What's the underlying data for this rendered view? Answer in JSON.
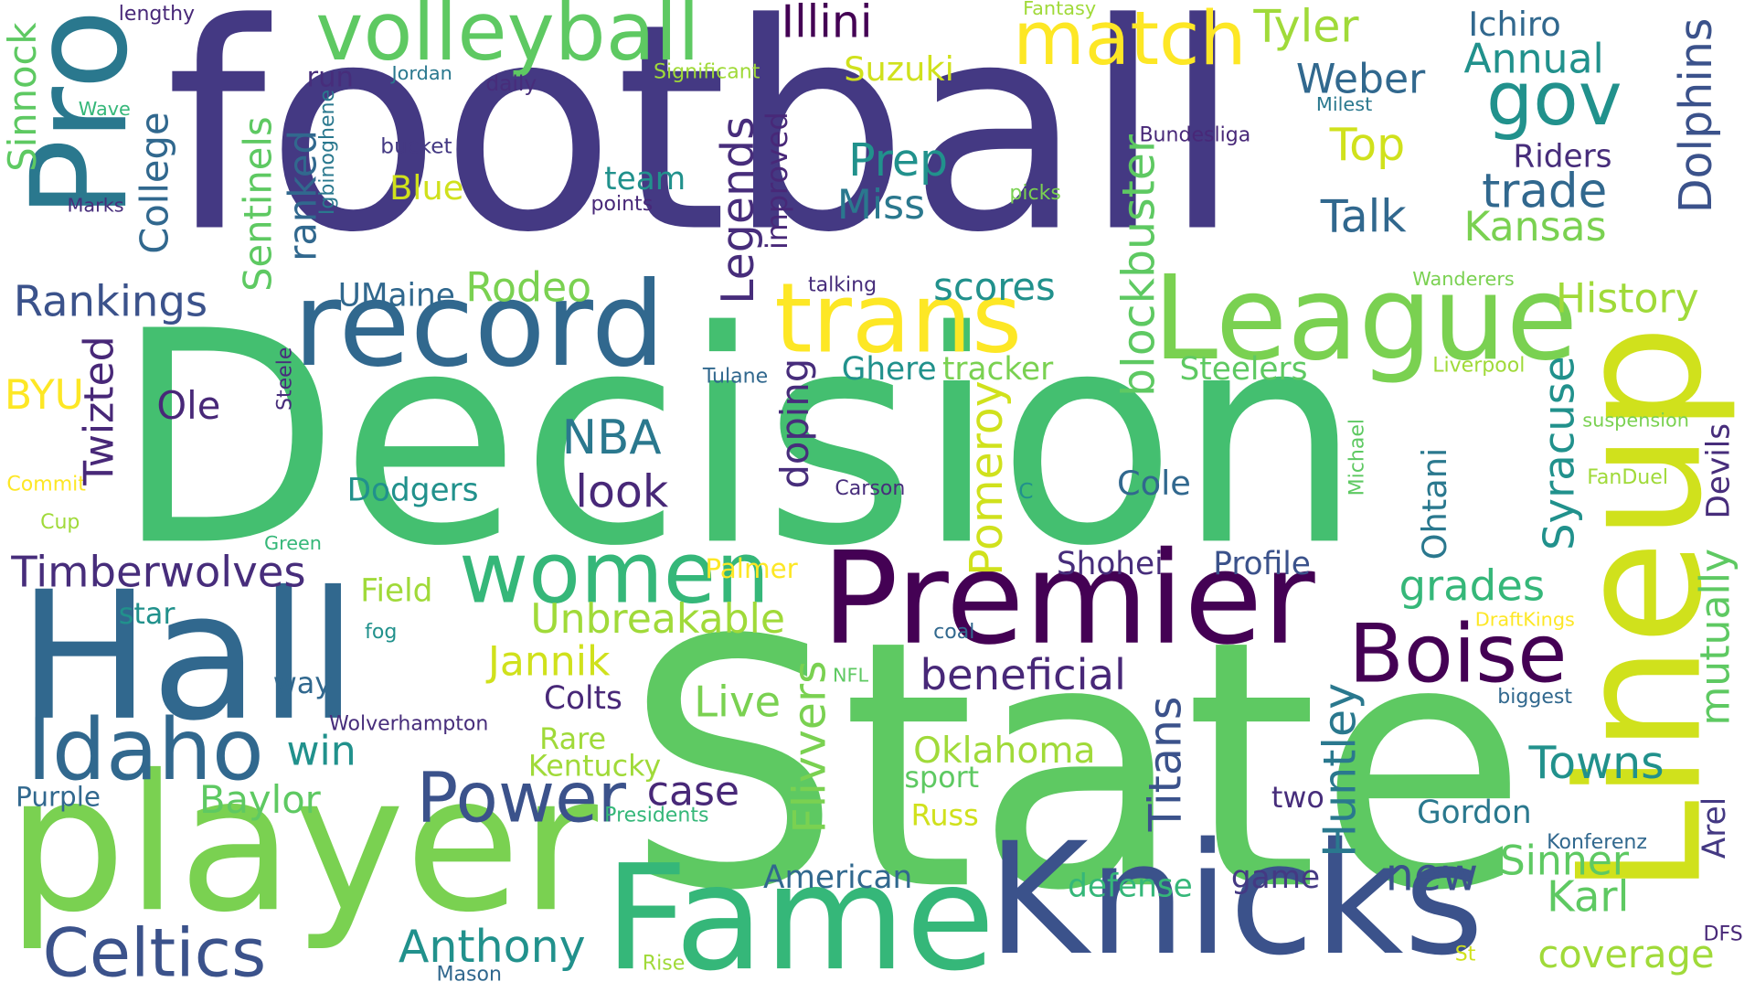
{
  "words": [
    {
      "text": "football",
      "color": "#443983"
    },
    {
      "text": "Decision",
      "color": "#44bf70"
    },
    {
      "text": "State",
      "color": "#5ec962"
    },
    {
      "text": "Lineup",
      "color": "#d0e11c"
    },
    {
      "text": "Pro",
      "color": "#2a788e"
    },
    {
      "text": "player",
      "color": "#7ad151"
    },
    {
      "text": "Hall",
      "color": "#31688e"
    },
    {
      "text": "Knicks",
      "color": "#3b528b"
    },
    {
      "text": "Fame",
      "color": "#35b779"
    },
    {
      "text": "record",
      "color": "#31688e"
    },
    {
      "text": "League",
      "color": "#7ad151"
    },
    {
      "text": "Premier",
      "color": "#440154"
    },
    {
      "text": "trans",
      "color": "#fde725"
    },
    {
      "text": "volleyball",
      "color": "#5ec962"
    },
    {
      "text": "match",
      "color": "#fde725"
    },
    {
      "text": "women",
      "color": "#35b779"
    },
    {
      "text": "Boise",
      "color": "#440154"
    },
    {
      "text": "Idaho",
      "color": "#31688e"
    },
    {
      "text": "Power",
      "color": "#3b528b"
    },
    {
      "text": "Celtics",
      "color": "#3b528b"
    },
    {
      "text": "gov",
      "color": "#21918c"
    },
    {
      "text": "Illini",
      "color": "#440154"
    },
    {
      "text": "Tyler",
      "color": "#a0da39"
    },
    {
      "text": "Ichiro",
      "color": "#31688e"
    },
    {
      "text": "Annual",
      "color": "#21918c"
    },
    {
      "text": "Weber",
      "color": "#31688e"
    },
    {
      "text": "Top",
      "color": "#d0e11c"
    },
    {
      "text": "Riders",
      "color": "#472d7b"
    },
    {
      "text": "trade",
      "color": "#31688e"
    },
    {
      "text": "Kansas",
      "color": "#7ad151"
    },
    {
      "text": "Talk",
      "color": "#31688e"
    },
    {
      "text": "Prep",
      "color": "#21918c"
    },
    {
      "text": "Miss",
      "color": "#2a788e"
    },
    {
      "text": "team",
      "color": "#21918c"
    },
    {
      "text": "points",
      "color": "#482878"
    },
    {
      "text": "Blue",
      "color": "#d0e11c"
    },
    {
      "text": "bucket",
      "color": "#443983"
    },
    {
      "text": "run",
      "color": "#472d7b"
    },
    {
      "text": "Jordan",
      "color": "#2a788e"
    },
    {
      "text": "daily",
      "color": "#472d7b"
    },
    {
      "text": "Significant",
      "color": "#a0da39"
    },
    {
      "text": "Suzuki",
      "color": "#d0e11c"
    },
    {
      "text": "Fantasy",
      "color": "#a0da39"
    },
    {
      "text": "lengthy",
      "color": "#482878"
    },
    {
      "text": "Wave",
      "color": "#35b779"
    },
    {
      "text": "Marks",
      "color": "#472d7b"
    },
    {
      "text": "Milest",
      "color": "#2a788e"
    },
    {
      "text": "Bundesliga",
      "color": "#482878"
    },
    {
      "text": "picks",
      "color": "#7ad151"
    },
    {
      "text": "talking",
      "color": "#472d7b"
    },
    {
      "text": "Wanderers",
      "color": "#7ad151"
    },
    {
      "text": "Rankings",
      "color": "#3b528b"
    },
    {
      "text": "UMaine",
      "color": "#31688e"
    },
    {
      "text": "Rodeo",
      "color": "#7ad151"
    },
    {
      "text": "scores",
      "color": "#21918c"
    },
    {
      "text": "History",
      "color": "#a0da39"
    },
    {
      "text": "Ghere",
      "color": "#21918c"
    },
    {
      "text": "tracker",
      "color": "#7ad151"
    },
    {
      "text": "Steelers",
      "color": "#5ec962"
    },
    {
      "text": "Liverpool",
      "color": "#a0da39"
    },
    {
      "text": "Tulane",
      "color": "#31688e"
    },
    {
      "text": "BYU",
      "color": "#fde725"
    },
    {
      "text": "Ole",
      "color": "#482878"
    },
    {
      "text": "NBA",
      "color": "#2a788e"
    },
    {
      "text": "look",
      "color": "#482878"
    },
    {
      "text": "Carson",
      "color": "#472d7b"
    },
    {
      "text": "C",
      "color": "#21918c"
    },
    {
      "text": "Cole",
      "color": "#31688e"
    },
    {
      "text": "suspension",
      "color": "#7ad151"
    },
    {
      "text": "FanDuel",
      "color": "#a0da39"
    },
    {
      "text": "Commit",
      "color": "#fde725"
    },
    {
      "text": "Dodgers",
      "color": "#21918c"
    },
    {
      "text": "Cup",
      "color": "#a0da39"
    },
    {
      "text": "Green",
      "color": "#35b779"
    },
    {
      "text": "Timberwolves",
      "color": "#472d7b"
    },
    {
      "text": "Field",
      "color": "#a0da39"
    },
    {
      "text": "Palmer",
      "color": "#fde725"
    },
    {
      "text": "Shohei",
      "color": "#472d7b"
    },
    {
      "text": "Profile",
      "color": "#3b528b"
    },
    {
      "text": "grades",
      "color": "#35b779"
    },
    {
      "text": "DraftKings",
      "color": "#fde725"
    },
    {
      "text": "star",
      "color": "#21918c"
    },
    {
      "text": "fog",
      "color": "#21918c"
    },
    {
      "text": "Unbreakable",
      "color": "#a0da39"
    },
    {
      "text": "coal",
      "color": "#31688e"
    },
    {
      "text": "Jannik",
      "color": "#d0e11c"
    },
    {
      "text": "beneficial",
      "color": "#482878"
    },
    {
      "text": "way",
      "color": "#31688e"
    },
    {
      "text": "Colts",
      "color": "#482878"
    },
    {
      "text": "NFL",
      "color": "#5ec962"
    },
    {
      "text": "Live",
      "color": "#7ad151"
    },
    {
      "text": "biggest",
      "color": "#31688e"
    },
    {
      "text": "Wolverhampton",
      "color": "#472d7b"
    },
    {
      "text": "Rare",
      "color": "#a0da39"
    },
    {
      "text": "Oklahoma",
      "color": "#a0da39"
    },
    {
      "text": "win",
      "color": "#21918c"
    },
    {
      "text": "Kentucky",
      "color": "#a0da39"
    },
    {
      "text": "Towns",
      "color": "#21918c"
    },
    {
      "text": "Purple",
      "color": "#31688e"
    },
    {
      "text": "Baylor",
      "color": "#5ec962"
    },
    {
      "text": "case",
      "color": "#482878"
    },
    {
      "text": "sport",
      "color": "#5ec962"
    },
    {
      "text": "two",
      "color": "#472d7b"
    },
    {
      "text": "Gordon",
      "color": "#2a788e"
    },
    {
      "text": "Presidents",
      "color": "#35b779"
    },
    {
      "text": "Russ",
      "color": "#d0e11c"
    },
    {
      "text": "Konferenz",
      "color": "#31688e"
    },
    {
      "text": "Sinner",
      "color": "#5ec962"
    },
    {
      "text": "American",
      "color": "#31688e"
    },
    {
      "text": "defense",
      "color": "#35b779"
    },
    {
      "text": "game",
      "color": "#443983"
    },
    {
      "text": "new",
      "color": "#3b528b"
    },
    {
      "text": "Karl",
      "color": "#5ec962"
    },
    {
      "text": "Anthony",
      "color": "#21918c"
    },
    {
      "text": "coverage",
      "color": "#a0da39"
    },
    {
      "text": "DFS",
      "color": "#482878"
    },
    {
      "text": "St",
      "color": "#d0e11c"
    },
    {
      "text": "Rise",
      "color": "#a0da39"
    },
    {
      "text": "Mason",
      "color": "#31688e"
    },
    {
      "text": "Sinnock",
      "color": "#5ec962"
    },
    {
      "text": "College",
      "color": "#31688e"
    },
    {
      "text": "Sentinels",
      "color": "#5ec962"
    },
    {
      "text": "ranked",
      "color": "#31688e"
    },
    {
      "text": "Igbinoghene",
      "color": "#2a788e"
    },
    {
      "text": "Steele",
      "color": "#472d7b"
    },
    {
      "text": "Twizted",
      "color": "#482878"
    },
    {
      "text": "Legends",
      "color": "#472d7b"
    },
    {
      "text": "improved",
      "color": "#482878"
    },
    {
      "text": "doping",
      "color": "#472d7b"
    },
    {
      "text": "Pomeroy",
      "color": "#d0e11c"
    },
    {
      "text": "blockbuster",
      "color": "#5ec962"
    },
    {
      "text": "Titans",
      "color": "#3b528b"
    },
    {
      "text": "Huntley",
      "color": "#2a788e"
    },
    {
      "text": "Flivvers",
      "color": "#7ad151"
    },
    {
      "text": "Syracuse",
      "color": "#21918c"
    },
    {
      "text": "Ohtani",
      "color": "#2a788e"
    },
    {
      "text": "Michael",
      "color": "#5ec962"
    },
    {
      "text": "Dolphins",
      "color": "#3b528b"
    },
    {
      "text": "Devils",
      "color": "#472d7b"
    },
    {
      "text": "mutually",
      "color": "#5ec962"
    },
    {
      "text": "Arel",
      "color": "#443983"
    }
  ]
}
